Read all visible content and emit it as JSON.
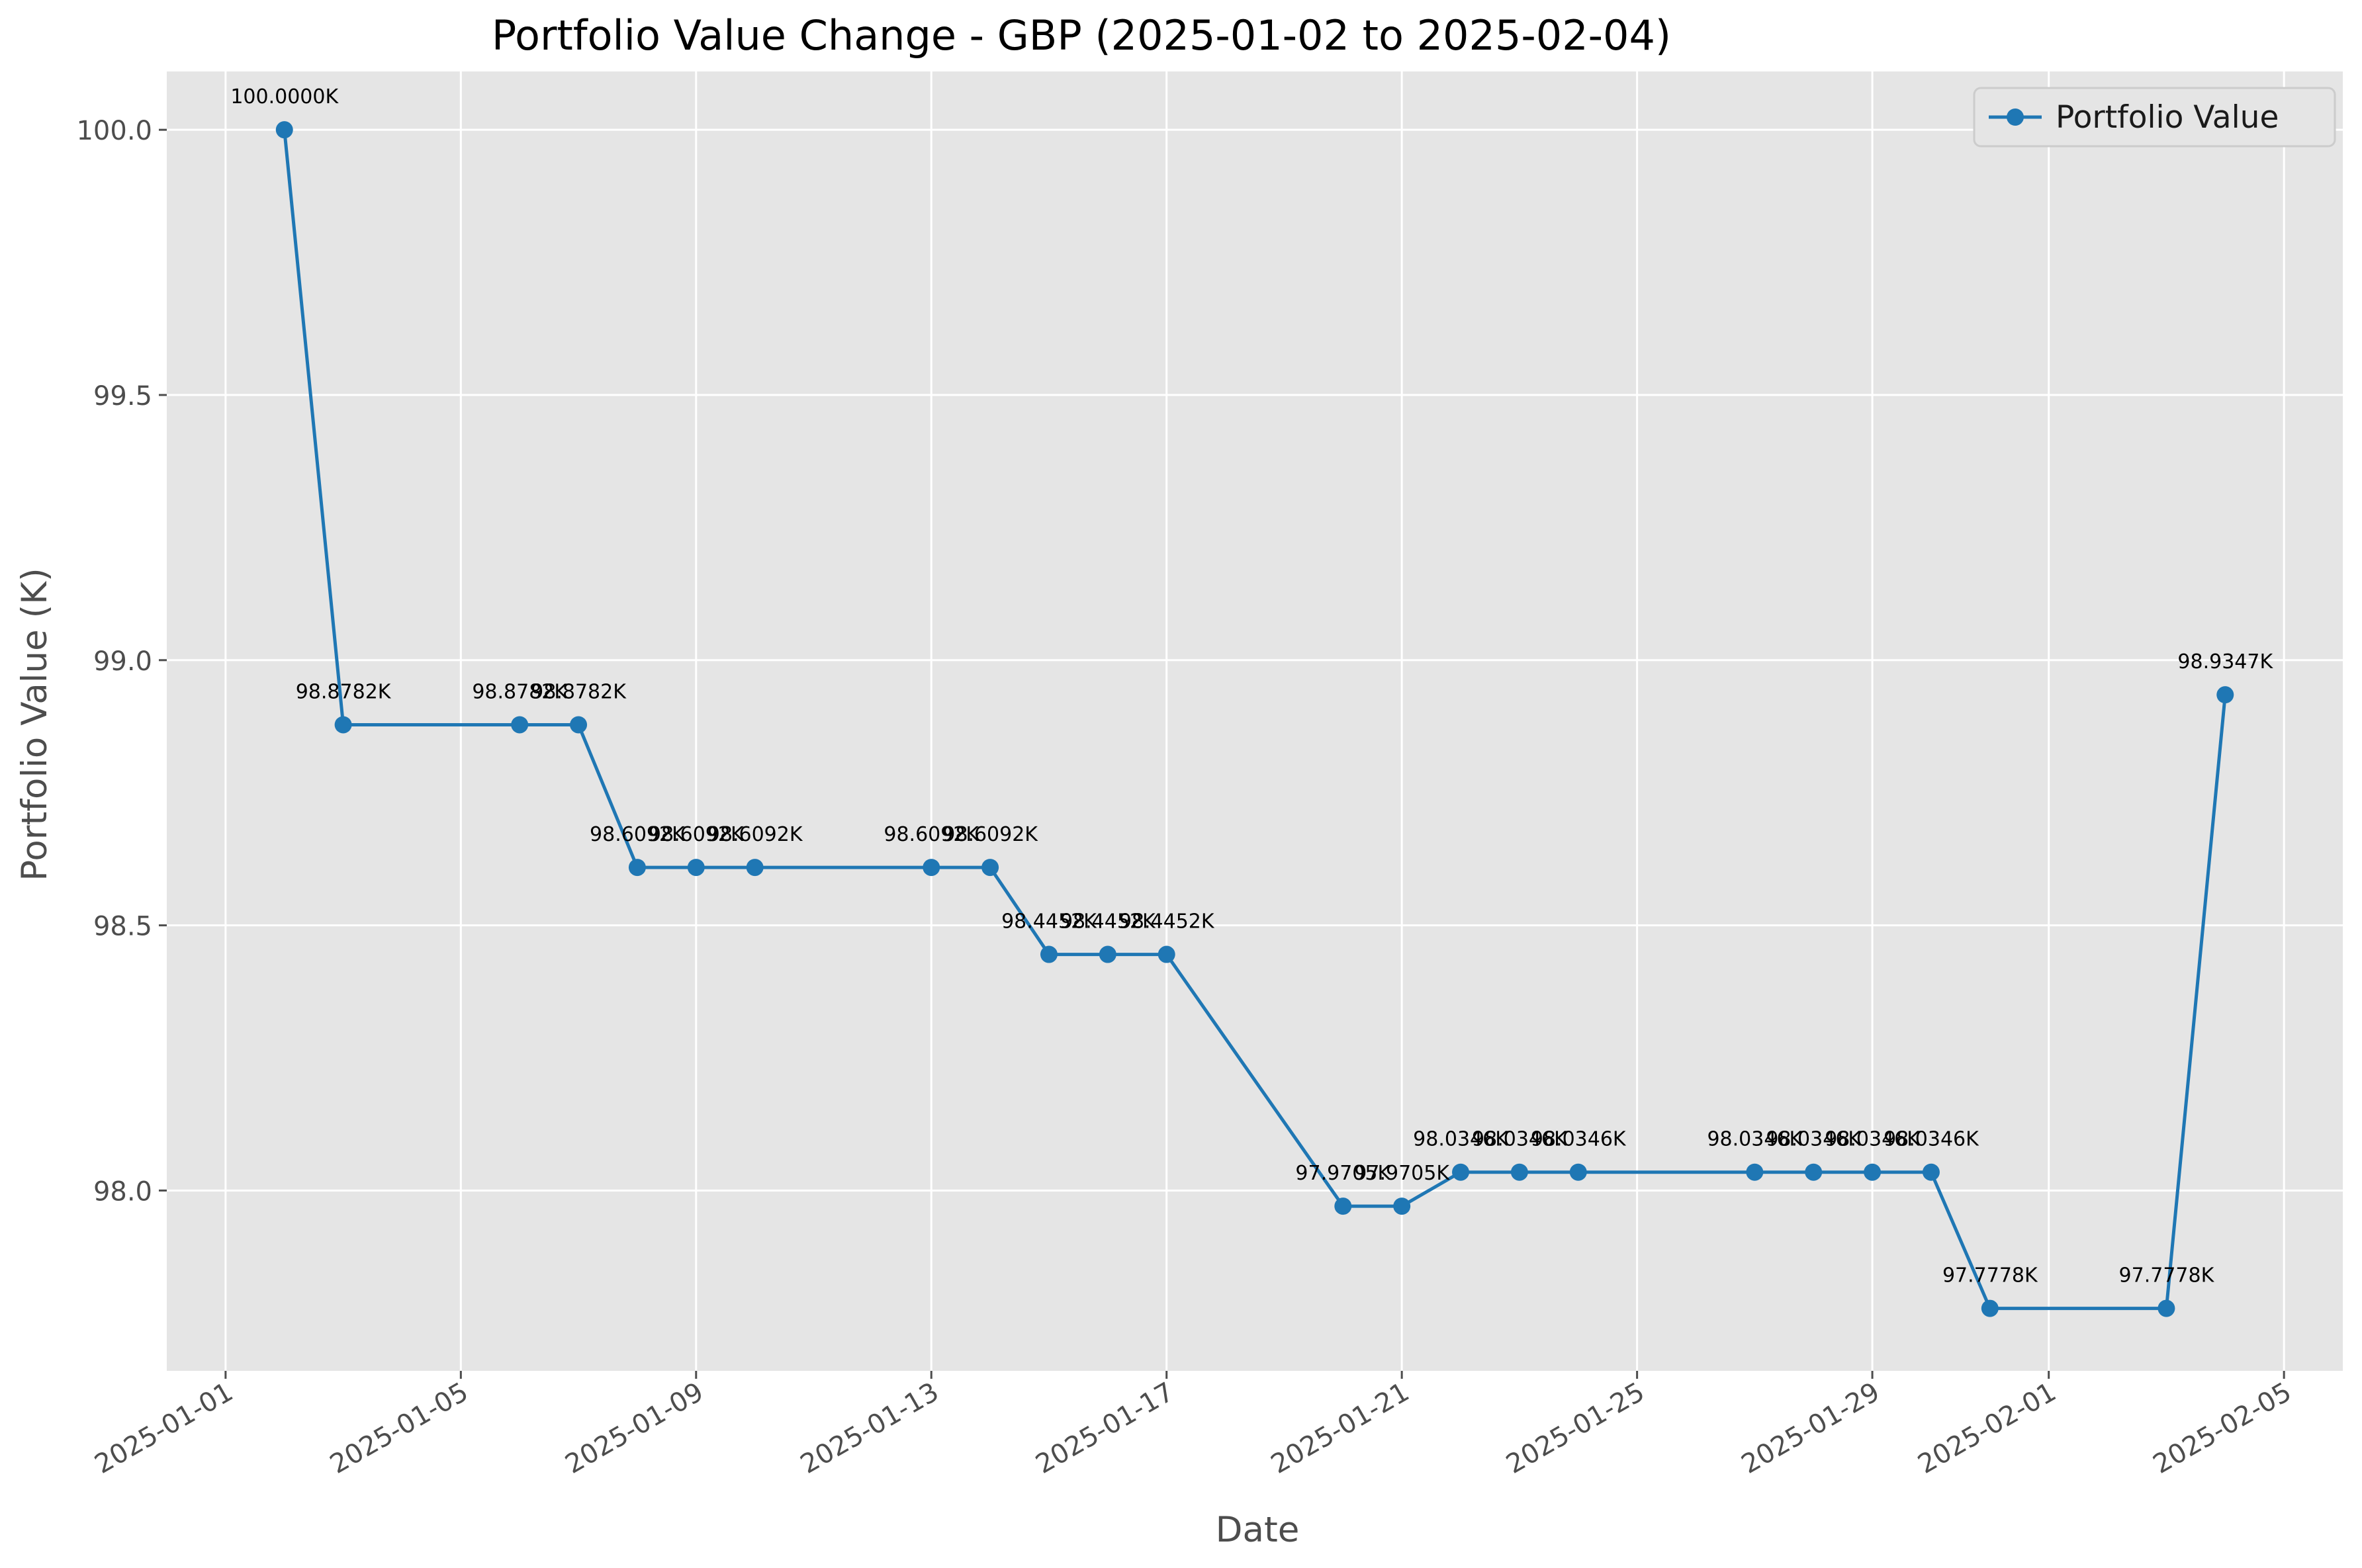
{
  "chart_data": {
    "type": "line",
    "title": "Portfolio Value Change - GBP (2025-01-02 to 2025-02-04)",
    "xlabel": "Date",
    "ylabel": "Portfolio Value (K)",
    "x_axis_type": "date",
    "xlim": [
      "2024-12-31",
      "2025-02-06"
    ],
    "ylim": [
      97.66,
      100.11
    ],
    "x_ticks": [
      "2025-01-01",
      "2025-01-05",
      "2025-01-09",
      "2025-01-13",
      "2025-01-17",
      "2025-01-21",
      "2025-01-25",
      "2025-01-29",
      "2025-02-01",
      "2025-02-05"
    ],
    "y_ticks": [
      98.0,
      98.5,
      99.0,
      99.5,
      100.0
    ],
    "y_tick_labels": [
      "98.0",
      "98.5",
      "99.0",
      "99.5",
      "100.0"
    ],
    "grid": true,
    "legend_position": "upper right",
    "series": [
      {
        "name": "Portfolio Value",
        "color": "#1f77b4",
        "marker": "circle",
        "points": [
          {
            "x": "2025-01-02",
            "y": 100.0,
            "label": "100.0000K"
          },
          {
            "x": "2025-01-03",
            "y": 98.8782,
            "label": "98.8782K"
          },
          {
            "x": "2025-01-06",
            "y": 98.8782,
            "label": "98.8782K"
          },
          {
            "x": "2025-01-07",
            "y": 98.8782,
            "label": "98.8782K"
          },
          {
            "x": "2025-01-08",
            "y": 98.6092,
            "label": "98.6092K"
          },
          {
            "x": "2025-01-09",
            "y": 98.6092,
            "label": "98.6092K"
          },
          {
            "x": "2025-01-10",
            "y": 98.6092,
            "label": "98.6092K"
          },
          {
            "x": "2025-01-13",
            "y": 98.6092,
            "label": "98.6092K"
          },
          {
            "x": "2025-01-14",
            "y": 98.6092,
            "label": "98.6092K"
          },
          {
            "x": "2025-01-15",
            "y": 98.4452,
            "label": "98.4452K"
          },
          {
            "x": "2025-01-16",
            "y": 98.4452,
            "label": "98.4452K"
          },
          {
            "x": "2025-01-17",
            "y": 98.4452,
            "label": "98.4452K"
          },
          {
            "x": "2025-01-20",
            "y": 97.9705,
            "label": "97.9705K"
          },
          {
            "x": "2025-01-21",
            "y": 97.9705,
            "label": "97.9705K"
          },
          {
            "x": "2025-01-22",
            "y": 98.0346,
            "label": "98.0346K"
          },
          {
            "x": "2025-01-23",
            "y": 98.0346,
            "label": "98.0346K"
          },
          {
            "x": "2025-01-24",
            "y": 98.0346,
            "label": "98.0346K"
          },
          {
            "x": "2025-01-27",
            "y": 98.0346,
            "label": "98.0346K"
          },
          {
            "x": "2025-01-28",
            "y": 98.0346,
            "label": "98.0346K"
          },
          {
            "x": "2025-01-29",
            "y": 98.0346,
            "label": "98.0346K"
          },
          {
            "x": "2025-01-30",
            "y": 98.0346,
            "label": "98.0346K"
          },
          {
            "x": "2025-01-31",
            "y": 97.7778,
            "label": "97.7778K"
          },
          {
            "x": "2025-02-03",
            "y": 97.7778,
            "label": "97.7778K"
          },
          {
            "x": "2025-02-04",
            "y": 98.9347,
            "label": "98.9347K"
          }
        ]
      }
    ],
    "colors": {
      "plot_background": "#e5e5e5",
      "grid": "#ffffff",
      "text": "#4d4d4d",
      "title": "#000000",
      "line": "#1f77b4"
    }
  }
}
